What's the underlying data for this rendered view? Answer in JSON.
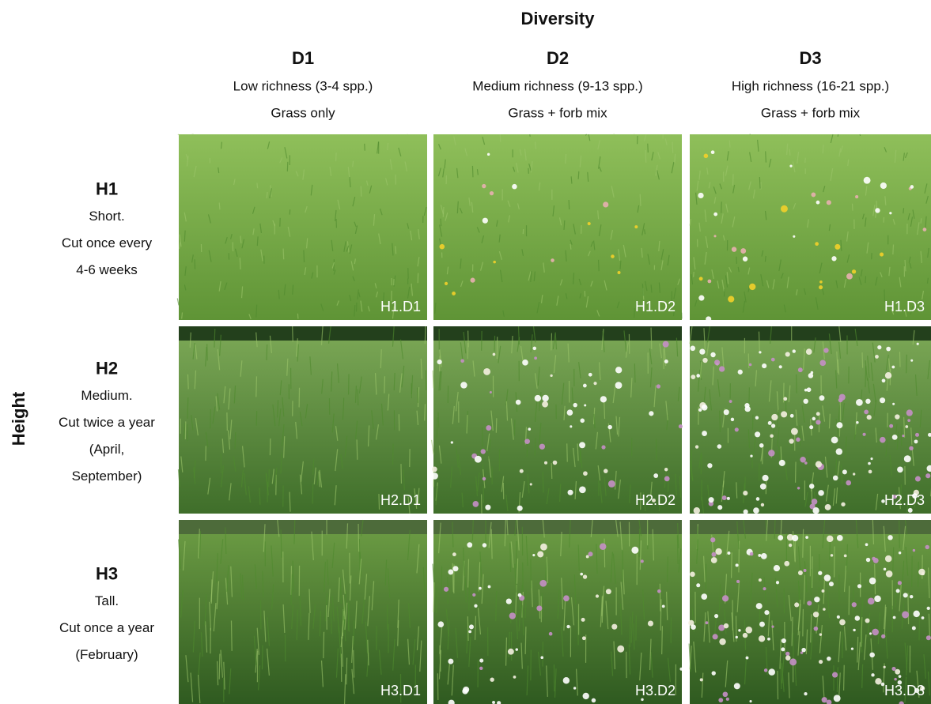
{
  "header": {
    "title": "Diversity"
  },
  "columns": [
    {
      "label": "D1",
      "line1": "Low richness (3-4 spp.)",
      "line2": "Grass only"
    },
    {
      "label": "D2",
      "line1": "Medium richness (9-13 spp.)",
      "line2": "Grass + forb mix"
    },
    {
      "label": "D3",
      "line1": "High richness (16-21 spp.)",
      "line2": "Grass + forb mix"
    }
  ],
  "row_axis": "Height",
  "rows": [
    {
      "label": "H1",
      "lines": [
        "Short.",
        "Cut once every",
        "4-6 weeks"
      ]
    },
    {
      "label": "H2",
      "lines": [
        "Medium.",
        "Cut twice a year",
        "(April,",
        "September)"
      ]
    },
    {
      "label": "H3",
      "lines": [
        "Tall.",
        "Cut once a year",
        "(February)"
      ]
    }
  ],
  "cells": [
    [
      "H1.D1",
      "H1.D2",
      "H1.D3"
    ],
    [
      "H2.D1",
      "H2.D2",
      "H2.D3"
    ],
    [
      "H3.D1",
      "H3.D2",
      "H3.D3"
    ]
  ]
}
